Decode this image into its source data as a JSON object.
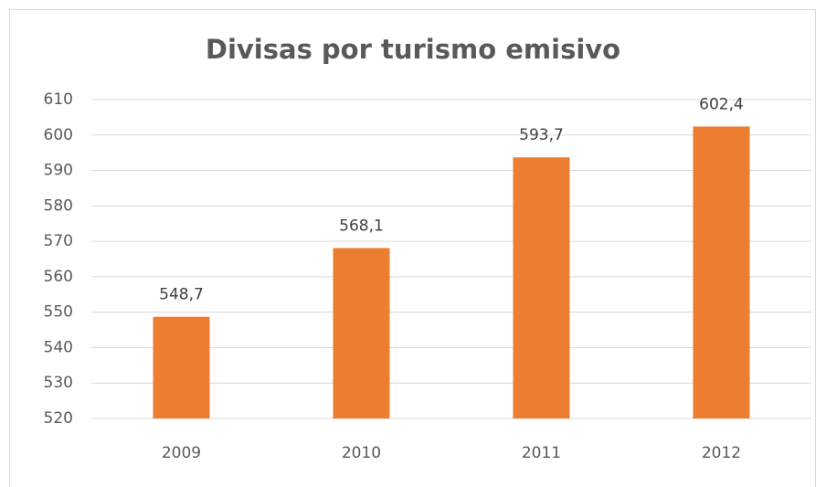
{
  "chart_data": {
    "type": "bar",
    "title": "Divisas por turismo emisivo",
    "categories": [
      "2009",
      "2010",
      "2011",
      "2012"
    ],
    "values": [
      548.7,
      568.1,
      593.7,
      602.4
    ],
    "value_labels": [
      "548,7",
      "568,1",
      "593,7",
      "602,4"
    ],
    "color": "#ed7d31",
    "ylim": [
      520,
      610
    ],
    "yticks": [
      520,
      530,
      540,
      550,
      560,
      570,
      580,
      590,
      600,
      610
    ],
    "grid": true
  }
}
